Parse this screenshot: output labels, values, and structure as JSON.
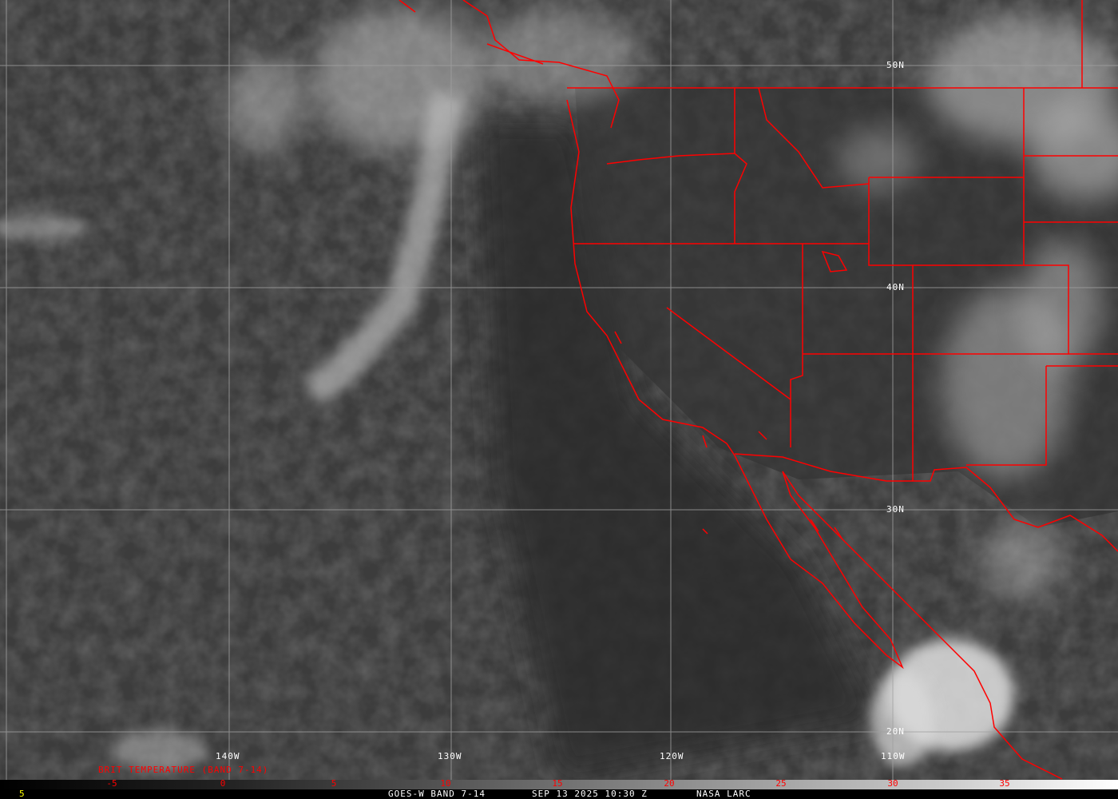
{
  "map": {
    "product_title": "BRIT TEMPERATURE (BAND 7-14)",
    "lat_labels": [
      "50N",
      "40N",
      "30N",
      "20N"
    ],
    "lon_labels": [
      "140W",
      "130W",
      "120W",
      "110W"
    ],
    "border_color": "#ff0000",
    "grid_color": "#a0a0a0"
  },
  "colorbar": {
    "ticks": [
      "-5",
      "0",
      "5",
      "10",
      "15",
      "20",
      "25",
      "30",
      "35"
    ],
    "tick_color": "#ff0000"
  },
  "footer": {
    "frame_number": "5",
    "satellite": "GOES-W BAND 7-14",
    "datetime": "SEP 13 2025 10:30 Z",
    "source": "NASA LARC"
  }
}
